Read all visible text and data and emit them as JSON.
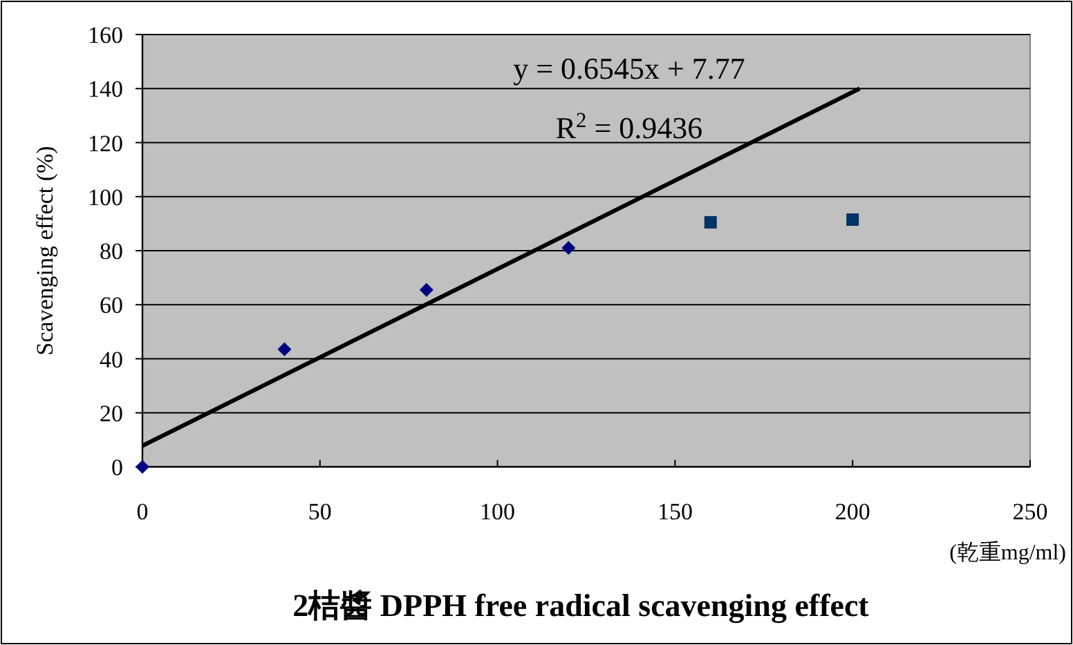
{
  "chart_data": {
    "type": "scatter",
    "title": "2桔醬 DPPH free radical scavenging effect",
    "xlabel": "(乾重mg/ml)",
    "ylabel": "Scavenging effect (%)",
    "annotations": [
      "y = 0.6545x + 7.77",
      "R$^{2}$ = 0.9436"
    ],
    "xlim": [
      0,
      250
    ],
    "ylim": [
      0,
      160
    ],
    "xticks": [
      0,
      50,
      100,
      150,
      200,
      250
    ],
    "yticks": [
      0,
      20,
      40,
      60,
      80,
      100,
      120,
      140,
      160
    ],
    "grid": "y",
    "series": [
      {
        "marker": "diamond",
        "color": "#000080",
        "x": [
          0,
          40,
          80,
          120
        ],
        "values": [
          0,
          43.5,
          65.5,
          81
        ]
      },
      {
        "marker": "square",
        "color": "#003366",
        "x": [
          160,
          200
        ],
        "values": [
          90.5,
          91.5
        ]
      },
      {
        "type": "line",
        "line_style": "solid",
        "color": "#000000",
        "x": [
          0,
          202
        ],
        "values": [
          7.8,
          140
        ]
      }
    ]
  }
}
